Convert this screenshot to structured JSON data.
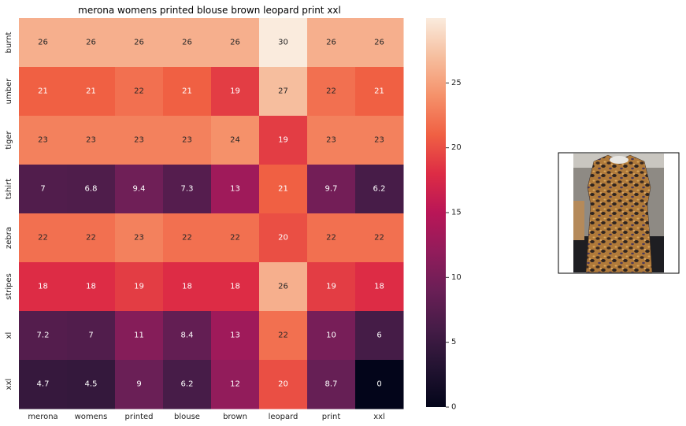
{
  "chart_data": {
    "type": "heatmap",
    "title": "merona womens printed blouse brown leopard print xxl",
    "xlabel": "",
    "ylabel": "",
    "x_labels": [
      "merona",
      "womens",
      "printed",
      "blouse",
      "brown",
      "leopard",
      "print",
      "xxl"
    ],
    "y_labels": [
      "burnt",
      "umber",
      "tiger",
      "tshirt",
      "zebra",
      "stripes",
      "xl",
      "xxl"
    ],
    "values": [
      [
        26,
        26,
        26,
        26,
        26,
        30,
        26,
        26
      ],
      [
        21,
        21,
        22,
        21,
        19,
        27,
        22,
        21
      ],
      [
        23,
        23,
        23,
        23,
        24,
        19,
        23,
        23
      ],
      [
        7,
        6.8,
        9.4,
        7.3,
        13,
        21,
        9.7,
        6.2
      ],
      [
        22,
        22,
        23,
        22,
        22,
        20,
        22,
        22
      ],
      [
        18,
        18,
        19,
        18,
        18,
        26,
        19,
        18
      ],
      [
        7.2,
        7,
        11,
        8.4,
        13,
        22,
        10,
        6
      ],
      [
        4.7,
        4.5,
        9,
        6.2,
        12,
        20,
        8.7,
        0
      ]
    ],
    "colorbar": {
      "min": 0,
      "max": 30,
      "ticks": [
        0,
        5,
        10,
        15,
        20,
        25
      ],
      "colormap": "rocket"
    },
    "grid": false,
    "legend": "colorbar-right"
  },
  "image_panel": {
    "subject": "leopard print sleeveless blouse on a hanger"
  }
}
